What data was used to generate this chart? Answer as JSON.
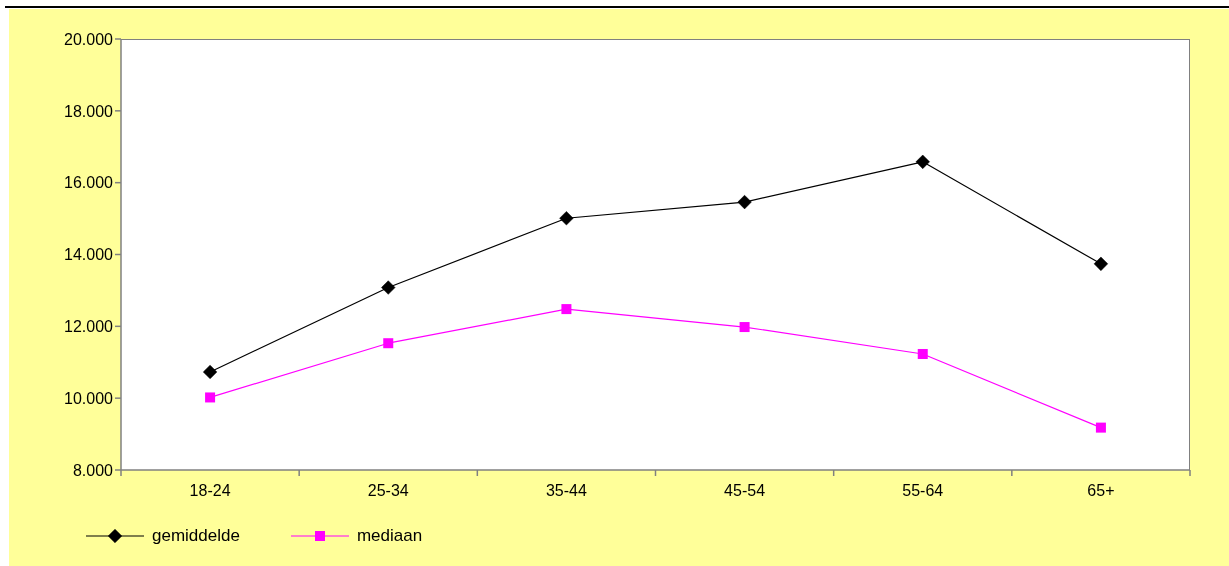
{
  "chart_data": {
    "type": "line",
    "categories": [
      "18-24",
      "25-34",
      "35-44",
      "45-54",
      "55-64",
      "65+"
    ],
    "series": [
      {
        "name": "gemiddelde",
        "color": "#000000",
        "marker": "diamond",
        "values": [
          10730,
          13080,
          15010,
          15460,
          16580,
          13740
        ]
      },
      {
        "name": "mediaan",
        "color": "#ff00ff",
        "marker": "square",
        "values": [
          10020,
          11530,
          12480,
          11980,
          11230,
          9180
        ]
      }
    ],
    "ylim": [
      8000,
      20000
    ],
    "yticks": [
      {
        "value": 8000,
        "label": "8.000"
      },
      {
        "value": 10000,
        "label": "10.000"
      },
      {
        "value": 12000,
        "label": "12.000"
      },
      {
        "value": 14000,
        "label": "14.000"
      },
      {
        "value": 16000,
        "label": "16.000"
      },
      {
        "value": 18000,
        "label": "18.000"
      },
      {
        "value": 20000,
        "label": "20.000"
      }
    ],
    "legend": "bottom left"
  }
}
